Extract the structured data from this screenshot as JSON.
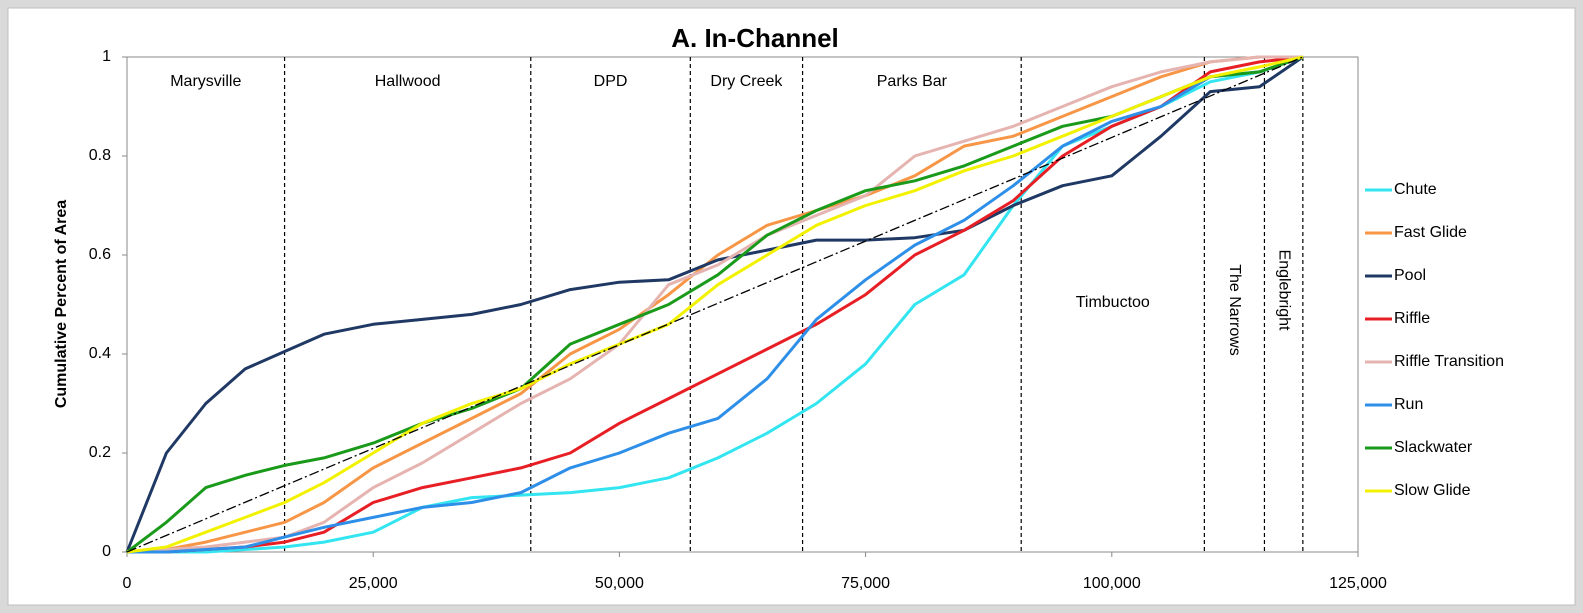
{
  "chart_data": {
    "type": "line",
    "title": "A. In-Channel",
    "y_label": "Cumulative Percent of Area",
    "xlim": [
      0,
      125000
    ],
    "ylim": [
      0,
      1
    ],
    "xticks": [
      0,
      {
        "value": 25000,
        "label": "25,000"
      },
      {
        "value": 50000,
        "label": "50,000"
      },
      {
        "value": 75000,
        "label": "75,000"
      },
      {
        "value": 100000,
        "label": "100,000"
      },
      {
        "value": 125000,
        "label": "125,000"
      }
    ],
    "yticks": [
      0,
      0.2,
      0.4,
      0.6,
      0.8,
      1
    ],
    "grid": false,
    "legend": "right",
    "dividers": [
      16000,
      41000,
      57200,
      68600,
      90800,
      109400,
      115500,
      119400
    ],
    "regions": [
      "Marysville",
      "Hallwood",
      "DPD",
      "Dry Creek",
      "Parks Bar",
      "Timbuctoo",
      "The Narrows",
      "Englebright"
    ],
    "reference": {
      "x": [
        0,
        119400
      ],
      "values": [
        0,
        1
      ],
      "color": "#000000"
    },
    "x": [
      0,
      4000,
      8000,
      12000,
      16000,
      20000,
      25000,
      30000,
      35000,
      40000,
      45000,
      50000,
      55000,
      60000,
      65000,
      70000,
      75000,
      80000,
      85000,
      90000,
      95000,
      100000,
      105000,
      110000,
      115000,
      119400
    ],
    "series": [
      {
        "name": "Chute",
        "color": "#33e5f0",
        "values": [
          0,
          0,
          0,
          0.005,
          0.01,
          0.02,
          0.04,
          0.09,
          0.11,
          0.115,
          0.12,
          0.13,
          0.15,
          0.19,
          0.24,
          0.3,
          0.38,
          0.5,
          0.56,
          0.7,
          0.82,
          0.86,
          0.9,
          0.95,
          0.97,
          1
        ]
      },
      {
        "name": "Fast Glide",
        "color": "#f79646",
        "values": [
          0,
          0.005,
          0.02,
          0.04,
          0.06,
          0.1,
          0.17,
          0.22,
          0.27,
          0.32,
          0.4,
          0.45,
          0.52,
          0.6,
          0.66,
          0.69,
          0.72,
          0.76,
          0.82,
          0.84,
          0.88,
          0.92,
          0.96,
          0.99,
          1,
          1
        ]
      },
      {
        "name": "Pool",
        "color": "#1f3864",
        "values": [
          0,
          0.2,
          0.3,
          0.37,
          0.405,
          0.44,
          0.46,
          0.47,
          0.48,
          0.5,
          0.53,
          0.545,
          0.55,
          0.59,
          0.61,
          0.63,
          0.63,
          0.635,
          0.65,
          0.7,
          0.74,
          0.76,
          0.84,
          0.93,
          0.94,
          1
        ]
      },
      {
        "name": "Riffle",
        "color": "#e81e25",
        "values": [
          0,
          0,
          0.005,
          0.01,
          0.02,
          0.04,
          0.1,
          0.13,
          0.15,
          0.17,
          0.2,
          0.26,
          0.31,
          0.36,
          0.41,
          0.46,
          0.52,
          0.6,
          0.65,
          0.71,
          0.8,
          0.86,
          0.9,
          0.97,
          0.99,
          1
        ]
      },
      {
        "name": "Riffle Transition",
        "color": "#e6b4b0",
        "values": [
          0,
          0.005,
          0.01,
          0.02,
          0.03,
          0.06,
          0.13,
          0.18,
          0.24,
          0.3,
          0.35,
          0.42,
          0.54,
          0.58,
          0.64,
          0.68,
          0.72,
          0.8,
          0.83,
          0.86,
          0.9,
          0.94,
          0.97,
          0.99,
          1,
          1
        ]
      },
      {
        "name": "Run",
        "color": "#2e8fe8",
        "values": [
          0,
          0,
          0.005,
          0.01,
          0.03,
          0.05,
          0.07,
          0.09,
          0.1,
          0.12,
          0.17,
          0.2,
          0.24,
          0.27,
          0.35,
          0.47,
          0.55,
          0.62,
          0.67,
          0.74,
          0.82,
          0.87,
          0.9,
          0.96,
          0.97,
          1
        ]
      },
      {
        "name": "Slackwater",
        "color": "#1a9a1a",
        "values": [
          0,
          0.06,
          0.13,
          0.155,
          0.175,
          0.19,
          0.22,
          0.26,
          0.29,
          0.33,
          0.42,
          0.46,
          0.5,
          0.56,
          0.64,
          0.69,
          0.73,
          0.75,
          0.78,
          0.82,
          0.86,
          0.88,
          0.92,
          0.96,
          0.97,
          1
        ]
      },
      {
        "name": "Slow Glide",
        "color": "#f2f200",
        "values": [
          0,
          0.01,
          0.04,
          0.07,
          0.1,
          0.14,
          0.2,
          0.26,
          0.3,
          0.33,
          0.38,
          0.42,
          0.46,
          0.54,
          0.6,
          0.66,
          0.7,
          0.73,
          0.77,
          0.8,
          0.84,
          0.88,
          0.92,
          0.96,
          0.98,
          1
        ]
      }
    ]
  }
}
